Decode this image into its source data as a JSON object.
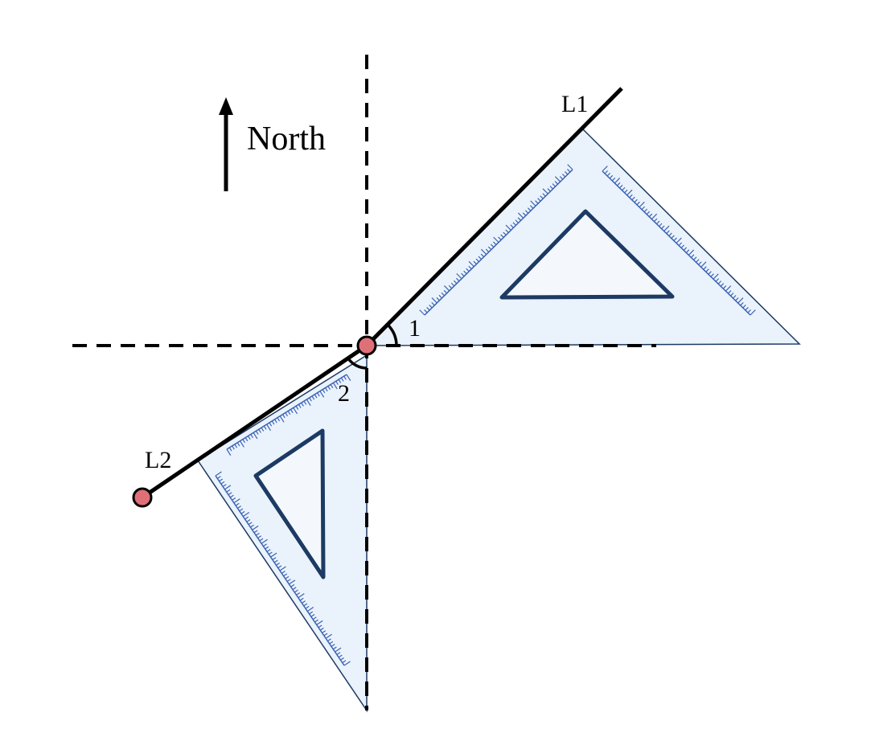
{
  "labels": {
    "north": "North",
    "line1": "L1",
    "line2": "L2",
    "angle1": "1",
    "angle2": "2"
  },
  "colors": {
    "triangle_fill": "#eaf2fb",
    "triangle_inner_fill": "#f4f8fd",
    "triangle_stroke": "#1c3a63",
    "tick_color": "#3b63b3",
    "point_fill": "#e07078",
    "line_color": "#000000"
  }
}
